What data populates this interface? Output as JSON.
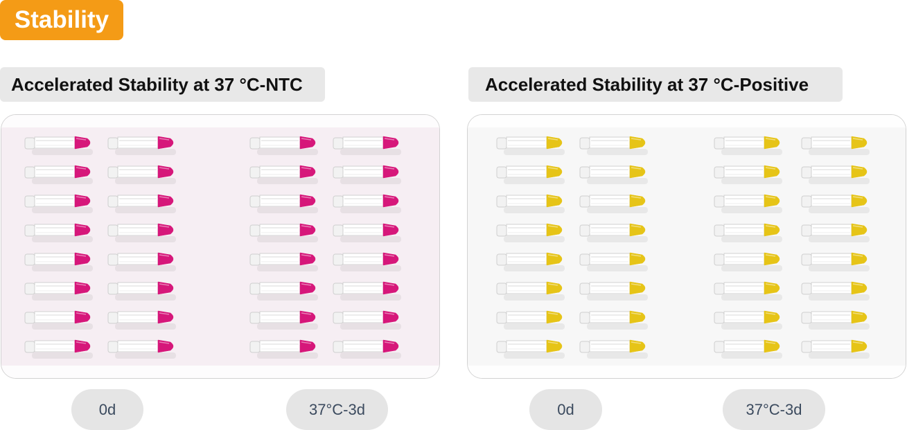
{
  "header": {
    "title": "Stability",
    "accent_color": "#f49b16"
  },
  "panels": [
    {
      "heading": "Accelerated Stability at 37 °C-NTC",
      "liquid_color": "#d6177a",
      "photo_tint": "#f6eef3",
      "tube_columns": 4,
      "tubes_per_column": 8,
      "labels": [
        "0d",
        "37°C-3d"
      ]
    },
    {
      "heading": "Accelerated Stability at 37 °C-Positive",
      "liquid_color": "#e6c417",
      "photo_tint": "#f7f7f7",
      "tube_columns": 4,
      "tubes_per_column": 8,
      "labels": [
        "0d",
        "37°C-3d"
      ]
    }
  ]
}
